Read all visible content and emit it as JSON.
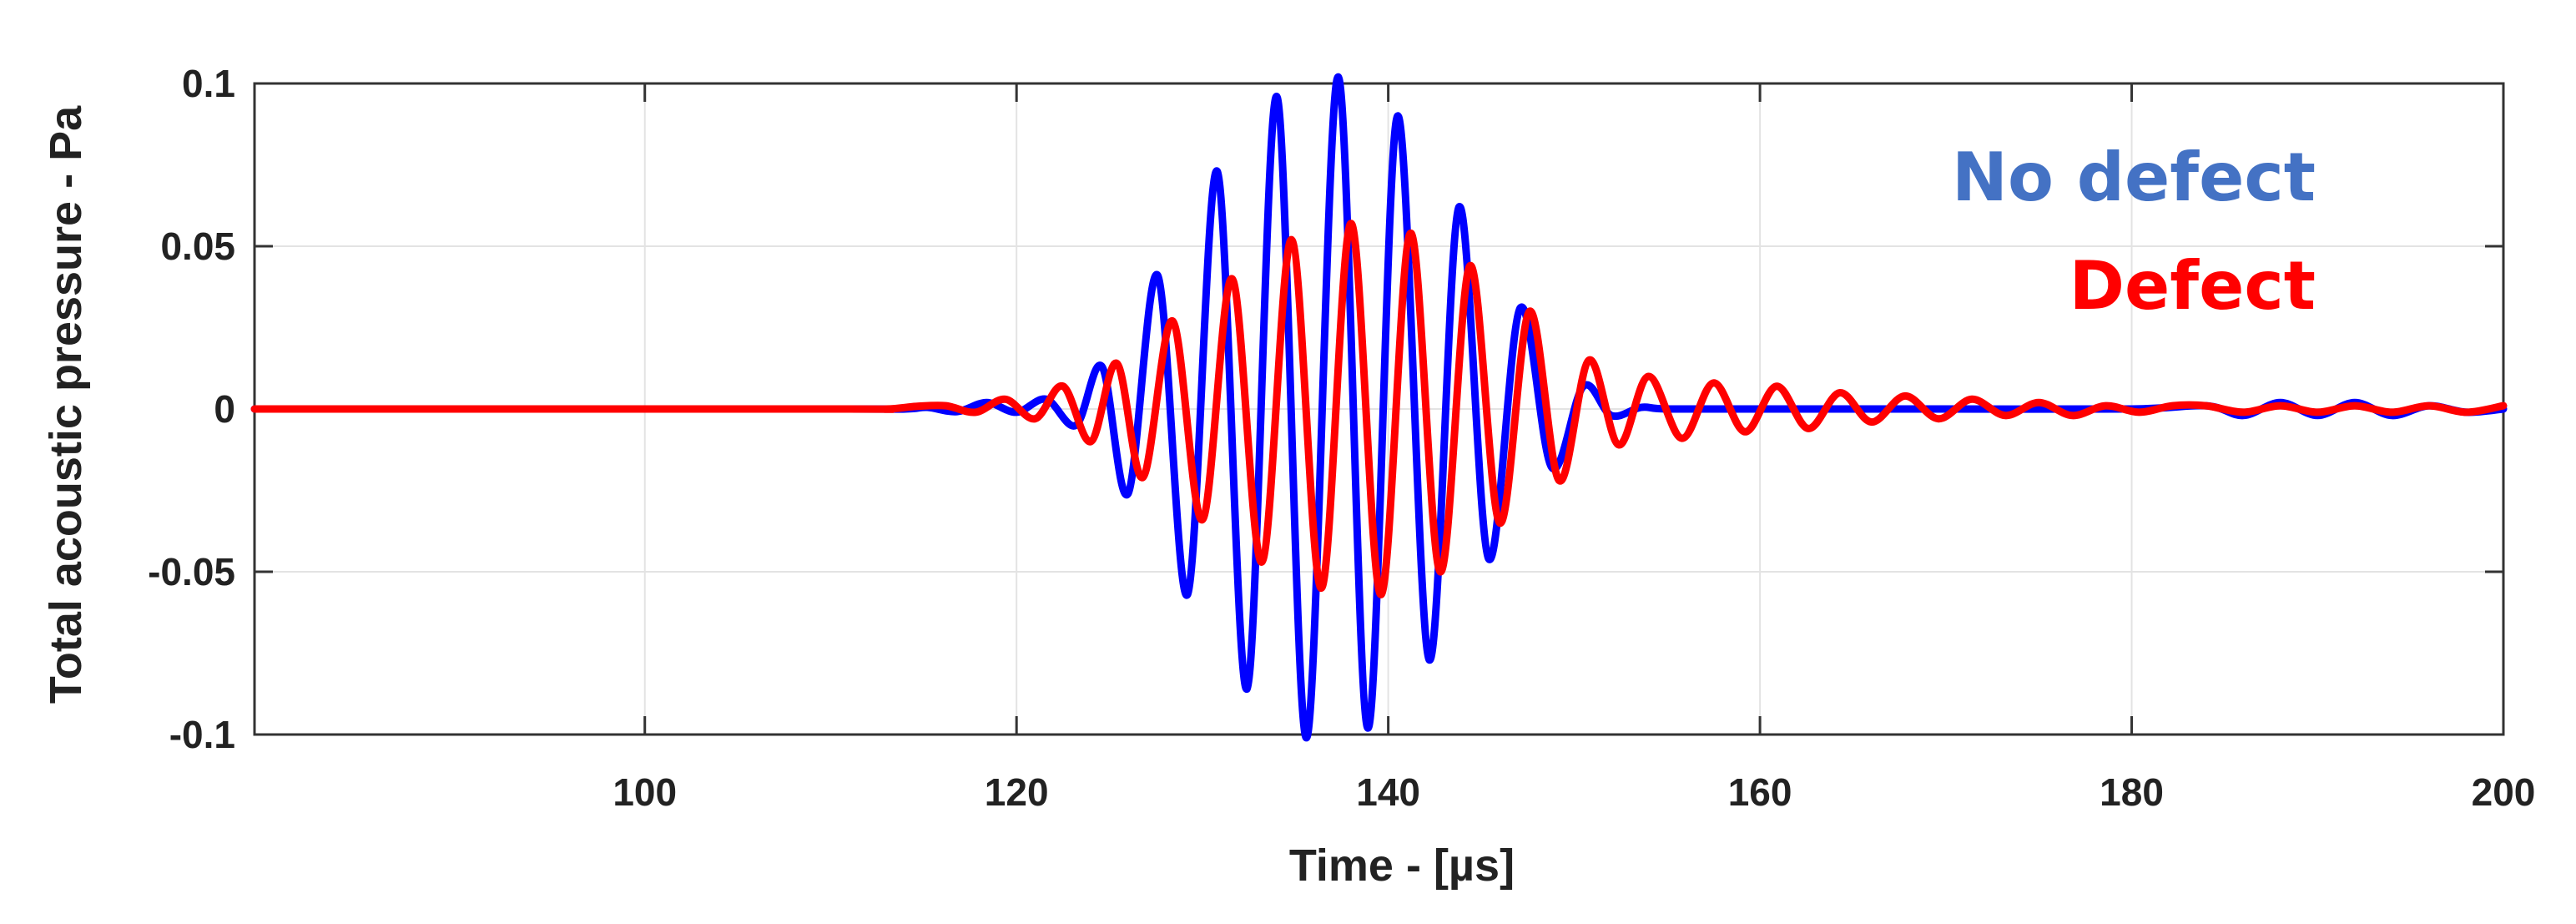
{
  "chart_data": {
    "type": "line",
    "title": "",
    "xlabel": "Time - [µs]",
    "ylabel": "Total acoustic pressure - Pa",
    "xlim": [
      79,
      200
    ],
    "ylim": [
      -0.1,
      0.1
    ],
    "xticks": [
      100,
      120,
      140,
      160,
      180,
      200
    ],
    "xtick_labels": [
      "100",
      "120",
      "140",
      "160",
      "180",
      "200"
    ],
    "yticks": [
      0.1,
      0.05,
      0,
      -0.05,
      -0.1
    ],
    "ytick_labels": [
      "0.1",
      "0.05",
      "0",
      "-0.05",
      "-0.1"
    ],
    "grid": true,
    "legend_position": "top-right",
    "series": [
      {
        "name": "No defect",
        "color": "#0000ff",
        "legend_color": "#4472c4",
        "x": [
          79,
          110,
          114,
          115.2,
          116.8,
          118.4,
          120.0,
          121.6,
          123.2,
          124.6,
          126.0,
          127.6,
          129.2,
          130.8,
          132.4,
          134.0,
          135.6,
          137.3,
          138.9,
          140.5,
          142.2,
          143.8,
          145.4,
          147.1,
          148.8,
          150.5,
          152.0,
          153.6,
          155,
          160,
          170,
          180,
          184,
          186,
          188,
          190,
          192,
          194,
          196,
          198,
          200
        ],
        "y": [
          0,
          0,
          0,
          0.0005,
          -0.0008,
          0.002,
          -0.001,
          0.003,
          -0.005,
          0.013,
          -0.026,
          0.041,
          -0.057,
          0.073,
          -0.086,
          0.096,
          -0.101,
          0.102,
          -0.098,
          0.09,
          -0.077,
          0.062,
          -0.046,
          0.031,
          -0.018,
          0.007,
          -0.002,
          0.0005,
          0,
          0,
          0,
          0,
          0.001,
          -0.002,
          0.002,
          -0.002,
          0.002,
          -0.002,
          0.001,
          -0.001,
          0
        ]
      },
      {
        "name": "Defect",
        "color": "#ff0000",
        "legend_color": "#ff0000",
        "x": [
          79,
          110,
          113,
          114.6,
          116.2,
          117.8,
          119.4,
          121.0,
          122.5,
          124.0,
          125.4,
          126.8,
          128.4,
          130.0,
          131.6,
          133.2,
          134.8,
          136.4,
          138.0,
          139.6,
          141.2,
          142.8,
          144.4,
          146.0,
          147.6,
          149.2,
          150.8,
          152.4,
          154.0,
          155.8,
          157.5,
          159.2,
          160.9,
          162.6,
          164.3,
          166.0,
          167.8,
          169.6,
          171.4,
          173.2,
          175.0,
          176.8,
          178.6,
          180.4,
          182.2,
          184,
          186,
          188,
          190,
          192,
          194,
          196,
          198,
          200
        ],
        "y": [
          0,
          0,
          0,
          0.0008,
          0.001,
          -0.001,
          0.003,
          -0.003,
          0.007,
          -0.01,
          0.014,
          -0.021,
          0.027,
          -0.034,
          0.04,
          -0.047,
          0.052,
          -0.055,
          0.057,
          -0.057,
          0.054,
          -0.05,
          0.044,
          -0.035,
          0.03,
          -0.022,
          0.015,
          -0.011,
          0.01,
          -0.009,
          0.008,
          -0.007,
          0.007,
          -0.006,
          0.005,
          -0.004,
          0.004,
          -0.003,
          0.003,
          -0.002,
          0.002,
          -0.002,
          0.001,
          -0.001,
          0.001,
          0.001,
          -0.001,
          0.001,
          -0.001,
          0.001,
          -0.001,
          0.001,
          -0.001,
          0.001
        ]
      }
    ]
  }
}
